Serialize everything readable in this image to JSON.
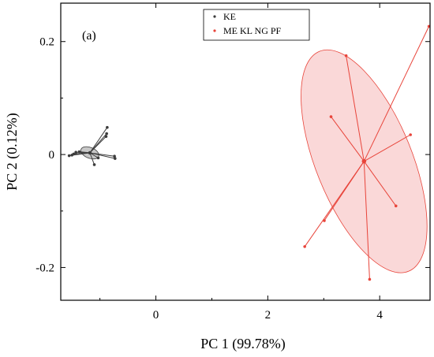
{
  "chart_data": {
    "type": "scatter",
    "panel_label": "(a)",
    "xlabel": "PC 1 (99.78%)",
    "ylabel": "PC 2 (0.12%)",
    "xlim": [
      -1.7,
      4.9
    ],
    "ylim": [
      -0.258,
      0.268
    ],
    "xticks": [
      0,
      2,
      4
    ],
    "yticks": [
      0.2,
      0,
      -0.2
    ],
    "xtick_labels": [
      "0",
      "2",
      "4"
    ],
    "ytick_labels": [
      "0.2",
      "0",
      "-0.2"
    ],
    "grid": false,
    "legend_position": "top-center",
    "series": [
      {
        "name": "KE",
        "color": "#3c3c3c",
        "fill": "#bdbdbd",
        "centroid": [
          -1.18,
          0.003
        ],
        "ellipse": {
          "cx": -1.18,
          "cy": 0.003,
          "rx": 0.17,
          "ry": 0.0095,
          "angle_deg": -22
        },
        "points": [
          {
            "x": -0.87,
            "y": 0.048
          },
          {
            "x": -0.88,
            "y": 0.037
          },
          {
            "x": -0.89,
            "y": 0.032
          },
          {
            "x": -1.37,
            "y": 0.005
          },
          {
            "x": -1.43,
            "y": 0.004
          },
          {
            "x": -1.47,
            "y": 0.001
          },
          {
            "x": -1.5,
            "y": -0.001
          },
          {
            "x": -1.55,
            "y": -0.002
          },
          {
            "x": -0.74,
            "y": -0.003
          },
          {
            "x": -0.73,
            "y": -0.007
          },
          {
            "x": -1.03,
            "y": -0.006
          },
          {
            "x": -1.1,
            "y": -0.018
          }
        ]
      },
      {
        "name": "ME KL NG PF",
        "color": "#e8443a",
        "fill": "#f9d4d4",
        "centroid": [
          3.72,
          -0.012
        ],
        "ellipse": {
          "cx": 3.72,
          "cy": -0.012,
          "rx": 0.86,
          "ry": 0.21,
          "angle_deg": 22
        },
        "points": [
          {
            "x": 4.88,
            "y": 0.227
          },
          {
            "x": 3.4,
            "y": 0.175
          },
          {
            "x": 3.13,
            "y": 0.067
          },
          {
            "x": 4.55,
            "y": 0.035
          },
          {
            "x": 4.29,
            "y": -0.091
          },
          {
            "x": 3.01,
            "y": -0.117
          },
          {
            "x": 2.66,
            "y": -0.163
          },
          {
            "x": 3.82,
            "y": -0.221
          }
        ]
      }
    ]
  }
}
